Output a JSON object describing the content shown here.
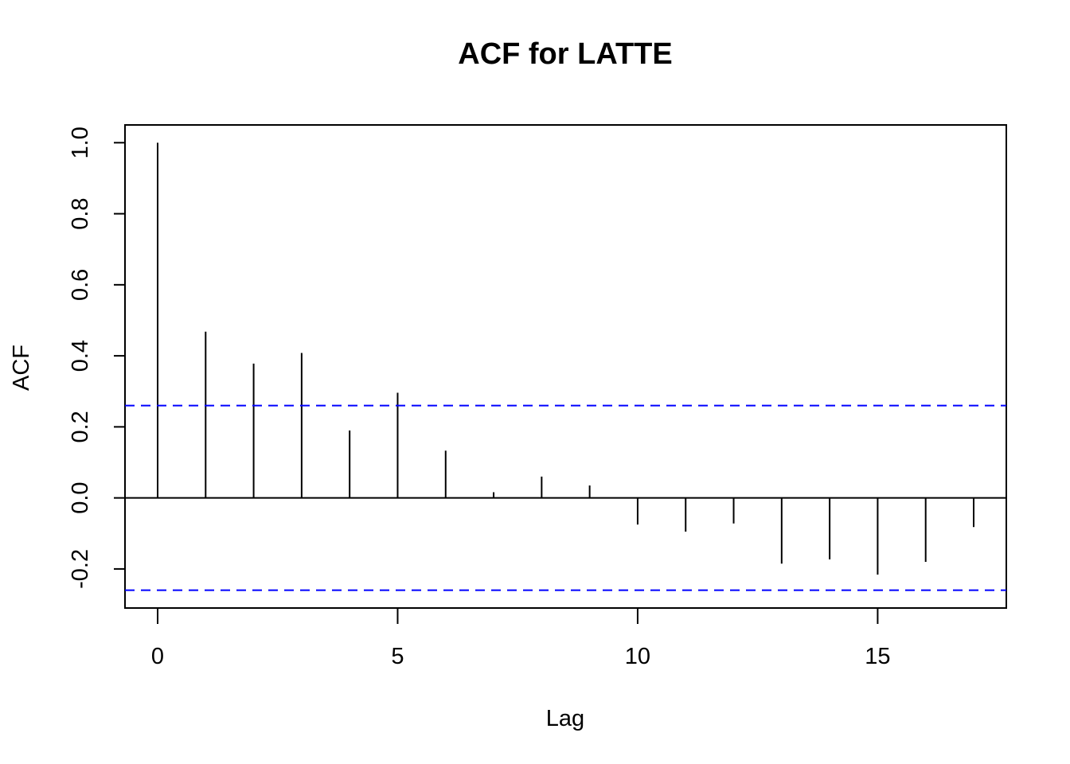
{
  "chart_data": {
    "type": "bar",
    "title": "ACF for LATTE",
    "xlabel": "Lag",
    "ylabel": "ACF",
    "x": [
      0,
      1,
      2,
      3,
      4,
      5,
      6,
      7,
      8,
      9,
      10,
      11,
      12,
      13,
      14,
      15,
      16,
      17
    ],
    "values": [
      1.0,
      0.468,
      0.378,
      0.408,
      0.19,
      0.296,
      0.133,
      0.016,
      0.06,
      0.035,
      -0.075,
      -0.095,
      -0.072,
      -0.185,
      -0.173,
      -0.216,
      -0.18,
      -0.082
    ],
    "xlim": [
      -0.68,
      17.68
    ],
    "ylim": [
      -0.31,
      1.05
    ],
    "x_ticks": [
      0,
      5,
      10,
      15
    ],
    "x_tick_labels": [
      "0",
      "5",
      "10",
      "15"
    ],
    "y_ticks": [
      -0.2,
      0.0,
      0.2,
      0.4,
      0.6,
      0.8,
      1.0
    ],
    "y_tick_labels": [
      "-0.2",
      "0.0",
      "0.2",
      "0.4",
      "0.6",
      "0.8",
      "1.0"
    ],
    "confidence_bounds": [
      0.26,
      -0.26
    ],
    "colors": {
      "bars": "#000000",
      "confidence": "#0000ff",
      "zero_line": "#000000"
    },
    "grid": false
  }
}
